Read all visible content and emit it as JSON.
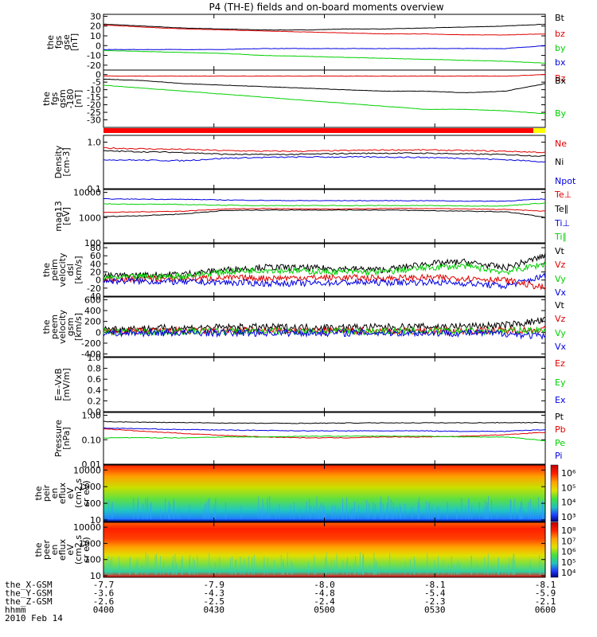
{
  "title": "P4 (TH-E) fields and on-board moments overview",
  "colors": {
    "black": "#000000",
    "red": "#e00000",
    "green": "#00d000",
    "blue": "#0000e0",
    "ybar_red": "#ff0000",
    "ybar_yellow": "#ffff00"
  },
  "chart_data": [
    {
      "type": "line",
      "ylabel": [
        "the",
        "fgs",
        "gse",
        "[nT]"
      ],
      "ylim": [
        -25,
        32
      ],
      "yticks": [
        30,
        20,
        10,
        0,
        -10,
        -20
      ],
      "legend": [
        "Bt",
        "bz",
        "by",
        "bx"
      ],
      "series": [
        {
          "name": "Bt",
          "color": "black",
          "values": [
            22,
            20,
            18,
            17,
            16,
            16,
            17,
            17,
            18,
            19,
            20,
            22
          ]
        },
        {
          "name": "bz",
          "color": "red",
          "values": [
            21,
            19,
            17,
            16,
            15,
            14,
            13,
            12,
            12,
            11,
            11,
            12
          ]
        },
        {
          "name": "by",
          "color": "green",
          "values": [
            -5,
            -6,
            -7,
            -8,
            -10,
            -11,
            -12,
            -13,
            -14,
            -15,
            -16,
            -18
          ]
        },
        {
          "name": "bx",
          "color": "blue",
          "values": [
            -4,
            -4,
            -4,
            -4,
            -3,
            -3,
            -3,
            -3,
            -3,
            -3,
            -3,
            0
          ]
        }
      ]
    },
    {
      "type": "line",
      "ylabel": [
        "the",
        "fgs",
        "gsm",
        "-180",
        "[nT]"
      ],
      "ylim": [
        -35,
        3
      ],
      "yticks": [
        0,
        -5,
        -10,
        -15,
        -20,
        -25,
        -30
      ],
      "legend": [
        "Bz",
        "Bx",
        "By"
      ],
      "series": [
        {
          "name": "Bz",
          "color": "red",
          "values": [
            -1,
            -1,
            -1,
            -1,
            -1,
            -1,
            -1,
            -1,
            -1,
            -1,
            -1,
            0
          ]
        },
        {
          "name": "Bx",
          "color": "black",
          "values": [
            -3,
            -4,
            -6,
            -7,
            -8,
            -9,
            -10,
            -11,
            -11,
            -12,
            -11,
            -6
          ]
        },
        {
          "name": "By",
          "color": "green",
          "values": [
            -7,
            -9,
            -11,
            -13,
            -15,
            -17,
            -19,
            -21,
            -23,
            -23,
            -24,
            -26
          ]
        }
      ]
    },
    {
      "type": "line",
      "ylabel": [
        "Density",
        "[cm-3]"
      ],
      "yscale": "log",
      "ylim": [
        0.1,
        1.4
      ],
      "yticks": [
        1.0,
        0.1
      ],
      "yticklabels": [
        "1.0",
        "0.1"
      ],
      "legend": [
        "Ne",
        "Ni",
        "Npot"
      ],
      "series": [
        {
          "name": "Ne",
          "color": "red",
          "values": [
            0.75,
            0.72,
            0.7,
            0.66,
            0.64,
            0.64,
            0.66,
            0.68,
            0.68,
            0.66,
            0.64,
            0.6
          ]
        },
        {
          "name": "Ni",
          "color": "black",
          "values": [
            0.65,
            0.62,
            0.6,
            0.55,
            0.54,
            0.55,
            0.57,
            0.58,
            0.58,
            0.56,
            0.54,
            0.5
          ]
        },
        {
          "name": "Npot",
          "color": "blue",
          "values": [
            0.42,
            0.41,
            0.4,
            0.45,
            0.47,
            0.48,
            0.48,
            0.48,
            0.47,
            0.45,
            0.42,
            0.38
          ]
        }
      ]
    },
    {
      "type": "line",
      "ylabel": [
        "mag13",
        "[eV]"
      ],
      "yscale": "log",
      "ylim": [
        100,
        13000
      ],
      "yticks": [
        10000,
        1000,
        100
      ],
      "yticklabels": [
        "10000",
        "1000",
        "100"
      ],
      "legend": [
        "Te⊥",
        "Te∥",
        "Ti⊥",
        "Ti∥"
      ],
      "series": [
        {
          "name": "Te⊥",
          "color": "red",
          "values": [
            1600,
            1700,
            1800,
            2200,
            2300,
            2200,
            2200,
            2300,
            2300,
            2200,
            2100,
            1800
          ]
        },
        {
          "name": "Te∥",
          "color": "black",
          "values": [
            1100,
            1200,
            1400,
            1900,
            2000,
            2000,
            2000,
            2000,
            1900,
            1800,
            1700,
            1000
          ]
        },
        {
          "name": "Ti⊥",
          "color": "blue",
          "values": [
            5500,
            5400,
            5300,
            5000,
            4800,
            4700,
            4700,
            4700,
            4700,
            4500,
            4500,
            5500
          ]
        },
        {
          "name": "Ti∥",
          "color": "green",
          "values": [
            3500,
            3400,
            3300,
            3100,
            3000,
            3000,
            3000,
            3000,
            3000,
            2900,
            2900,
            3800
          ]
        }
      ]
    },
    {
      "type": "line",
      "ylabel": [
        "the",
        "peim",
        "velocity",
        "dsl",
        "[km/s]"
      ],
      "ylim": [
        -40,
        90
      ],
      "yticks": [
        80,
        60,
        40,
        20,
        0,
        -20,
        -40
      ],
      "legend": [
        "Vt",
        "Vz",
        "Vy",
        "Vx"
      ],
      "series": [
        {
          "name": "Vt",
          "color": "black",
          "values": [
            10,
            12,
            15,
            25,
            32,
            30,
            28,
            25,
            40,
            45,
            30,
            60
          ]
        },
        {
          "name": "Vz",
          "color": "red",
          "values": [
            2,
            3,
            4,
            5,
            5,
            6,
            6,
            5,
            6,
            5,
            0,
            -20
          ]
        },
        {
          "name": "Vy",
          "color": "green",
          "values": [
            5,
            8,
            10,
            20,
            25,
            22,
            20,
            20,
            30,
            35,
            20,
            40
          ]
        },
        {
          "name": "Vx",
          "color": "blue",
          "values": [
            -2,
            -3,
            -5,
            -6,
            -8,
            -8,
            -6,
            -6,
            -5,
            -8,
            -15,
            10
          ]
        }
      ]
    },
    {
      "type": "line",
      "ylabel": [
        "the",
        "peem",
        "velocity",
        "gsm",
        "[km/s]"
      ],
      "ylim": [
        -450,
        650
      ],
      "yticks": [
        600,
        400,
        200,
        0,
        -200,
        -400
      ],
      "legend": [
        "Vt",
        "Vz",
        "Vy",
        "Vx"
      ],
      "series": [
        {
          "name": "Vt",
          "color": "black",
          "values": [
            60,
            70,
            80,
            90,
            95,
            90,
            90,
            95,
            100,
            110,
            130,
            220
          ]
        },
        {
          "name": "Vz",
          "color": "red",
          "values": [
            20,
            20,
            25,
            25,
            25,
            25,
            25,
            25,
            25,
            30,
            30,
            50
          ]
        },
        {
          "name": "Vy",
          "color": "green",
          "values": [
            10,
            10,
            15,
            15,
            20,
            20,
            20,
            20,
            20,
            25,
            25,
            40
          ]
        },
        {
          "name": "Vx",
          "color": "blue",
          "values": [
            -10,
            -10,
            -10,
            -10,
            -10,
            -10,
            -10,
            -10,
            -10,
            -15,
            -20,
            -80
          ]
        }
      ]
    },
    {
      "type": "line",
      "ylabel": [
        "E=-VxB",
        "[mV/m]"
      ],
      "ylim": [
        0,
        1
      ],
      "yticks": [
        1.0,
        0.8,
        0.6,
        0.4,
        0.2,
        0.0
      ],
      "yticklabels": [
        "1.0",
        "0.8",
        "0.6",
        "0.4",
        "0.2",
        "0.0"
      ],
      "legend": [
        "Ez",
        "Ey",
        "Ex"
      ],
      "series": []
    },
    {
      "type": "line",
      "ylabel": [
        "Pressure",
        "[nPa]"
      ],
      "yscale": "log",
      "ylim": [
        0.01,
        1.3
      ],
      "yticks": [
        1.0,
        0.1,
        0.01
      ],
      "yticklabels": [
        "1.00",
        "0.10",
        "0.01"
      ],
      "legend": [
        "Pt",
        "Pb",
        "Pe",
        "Pi"
      ],
      "series": [
        {
          "name": "Pt",
          "color": "black",
          "values": [
            0.55,
            0.52,
            0.5,
            0.48,
            0.47,
            0.47,
            0.48,
            0.49,
            0.49,
            0.49,
            0.5,
            0.5
          ]
        },
        {
          "name": "Pb",
          "color": "red",
          "values": [
            0.28,
            0.22,
            0.18,
            0.15,
            0.13,
            0.12,
            0.12,
            0.13,
            0.13,
            0.14,
            0.16,
            0.2
          ]
        },
        {
          "name": "Pe",
          "color": "green",
          "values": [
            0.12,
            0.12,
            0.12,
            0.13,
            0.13,
            0.14,
            0.14,
            0.14,
            0.14,
            0.13,
            0.13,
            0.09
          ]
        },
        {
          "name": "Pi",
          "color": "blue",
          "values": [
            0.3,
            0.28,
            0.26,
            0.25,
            0.24,
            0.23,
            0.23,
            0.23,
            0.23,
            0.22,
            0.22,
            0.26
          ]
        }
      ]
    },
    {
      "type": "heatmap",
      "ylabel": [
        "the",
        "peir",
        "en",
        "eflux",
        "eV",
        "(cm2 s",
        "sr eV)"
      ],
      "yscale": "log",
      "ylim": [
        8,
        20000
      ],
      "yticks": [
        10000,
        1000,
        100,
        10
      ],
      "yticklabels": [
        "10000",
        "1000",
        "100",
        "10"
      ],
      "colorbar_labels": [
        "10⁶",
        "10⁵",
        "10⁴",
        "10³"
      ]
    },
    {
      "type": "heatmap",
      "ylabel": [
        "the",
        "peer",
        "en",
        "eflux",
        "eV",
        "(cm2 s",
        "sr eV)"
      ],
      "yscale": "log",
      "ylim": [
        8,
        20000
      ],
      "yticks": [
        10000,
        1000,
        100,
        10
      ],
      "yticklabels": [
        "10000",
        "1000",
        "100",
        "10"
      ],
      "colorbar_labels": [
        "10⁸",
        "10⁷",
        "10⁶",
        "10⁵",
        "10⁴"
      ]
    }
  ],
  "footer": {
    "rows": [
      {
        "label": "the_X-GSM",
        "values": [
          "-7.7",
          "-7.9",
          "-8.0",
          "-8.1",
          "-8.1"
        ]
      },
      {
        "label": "the_Y-GSM",
        "values": [
          "-3.6",
          "-4.3",
          "-4.8",
          "-5.4",
          "-5.9"
        ]
      },
      {
        "label": "the_Z-GSM",
        "values": [
          "-2.6",
          "-2.5",
          "-2.4",
          "-2.3",
          "-2.1"
        ]
      },
      {
        "label": "hhmm",
        "values": [
          "0400",
          "0430",
          "0500",
          "0530",
          "0600"
        ]
      }
    ],
    "date": "2010 Feb 14"
  }
}
